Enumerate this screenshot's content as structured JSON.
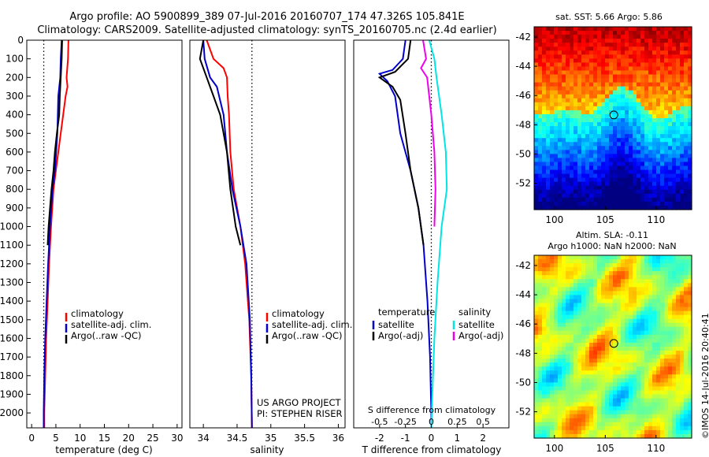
{
  "header": {
    "line1": "Argo profile: AO 5900899_389 07-Jul-2016 20160707_174 47.326S 105.841E",
    "line2": "Climatology: CARS2009. Satellite-adjusted climatology: synTS_20160705.nc (2.4d earlier)"
  },
  "colors": {
    "climatology": "#ff0000",
    "satellite": "#0000cc",
    "argo": "#000000",
    "sal_satellite": "#00e5e5",
    "sal_argo": "#ee00ee"
  },
  "footer": {
    "stamp": "©IMOS 14-Jul-2016 20:40:41"
  },
  "project": {
    "line1": "US ARGO PROJECT",
    "line2": "PI: STEPHEN RISER"
  },
  "chart_data": [
    {
      "type": "line",
      "id": "temperature",
      "xlabel": "temperature (deg C)",
      "ylabel": "",
      "xlim": [
        -1,
        31
      ],
      "ylim": [
        2080,
        0
      ],
      "xticks": [
        "0",
        "5",
        "10",
        "15",
        "20",
        "25",
        "30"
      ],
      "yticks": [
        "0",
        "100",
        "200",
        "300",
        "400",
        "500",
        "600",
        "700",
        "800",
        "900",
        "1000",
        "1100",
        "1200",
        "1300",
        "1400",
        "1500",
        "1600",
        "1700",
        "1800",
        "1900",
        "2000"
      ],
      "reference_line_x": 2.5,
      "legend": [
        "climatology",
        "satellite-adj. clim.",
        "Argo(..raw -QC)"
      ],
      "series": [
        {
          "name": "climatology",
          "color": "#ff0000",
          "points": [
            [
              7.6,
              0
            ],
            [
              7.5,
              100
            ],
            [
              7.2,
              200
            ],
            [
              7.4,
              250
            ],
            [
              7.0,
              300
            ],
            [
              6.0,
              500
            ],
            [
              5.0,
              700
            ],
            [
              4.5,
              800
            ],
            [
              4.0,
              1000
            ],
            [
              3.6,
              1200
            ],
            [
              3.3,
              1400
            ],
            [
              3.0,
              1600
            ],
            [
              2.8,
              1800
            ],
            [
              2.6,
              2000
            ],
            [
              2.6,
              2080
            ]
          ]
        },
        {
          "name": "satellite-adj. clim.",
          "color": "#0000cc",
          "points": [
            [
              6.2,
              0
            ],
            [
              6.0,
              100
            ],
            [
              5.9,
              200
            ],
            [
              5.5,
              300
            ],
            [
              5.3,
              500
            ],
            [
              4.8,
              700
            ],
            [
              4.3,
              800
            ],
            [
              3.8,
              1000
            ],
            [
              3.4,
              1200
            ],
            [
              3.1,
              1400
            ],
            [
              2.8,
              1600
            ],
            [
              2.6,
              1800
            ],
            [
              2.5,
              2000
            ],
            [
              2.5,
              2080
            ]
          ]
        },
        {
          "name": "Argo(..raw -QC)",
          "color": "#000000",
          "points": [
            [
              6.3,
              0
            ],
            [
              6.2,
              100
            ],
            [
              6.0,
              200
            ],
            [
              5.8,
              300
            ],
            [
              5.7,
              400
            ],
            [
              5.2,
              500
            ],
            [
              4.8,
              600
            ],
            [
              4.5,
              700
            ],
            [
              4.1,
              800
            ],
            [
              3.8,
              900
            ],
            [
              3.5,
              1000
            ],
            [
              3.3,
              1100
            ]
          ]
        }
      ]
    },
    {
      "type": "line",
      "id": "salinity",
      "xlabel": "salinity",
      "ylabel": "",
      "xlim": [
        33.8,
        36.1
      ],
      "ylim": [
        2080,
        0
      ],
      "xticks": [
        "34",
        "34.5",
        "35",
        "35.5",
        "36"
      ],
      "reference_line_x": 34.72,
      "legend": [
        "climatology",
        "satellite-adj. clim.",
        "Argo(..raw -QC)"
      ],
      "series": [
        {
          "name": "climatology",
          "color": "#ff0000",
          "points": [
            [
              34.05,
              0
            ],
            [
              34.15,
              100
            ],
            [
              34.3,
              150
            ],
            [
              34.35,
              200
            ],
            [
              34.36,
              300
            ],
            [
              34.38,
              400
            ],
            [
              34.4,
              600
            ],
            [
              34.45,
              800
            ],
            [
              34.55,
              1000
            ],
            [
              34.62,
              1200
            ],
            [
              34.68,
              1500
            ],
            [
              34.71,
              1800
            ],
            [
              34.72,
              2080
            ]
          ]
        },
        {
          "name": "satellite-adj. clim.",
          "color": "#0000cc",
          "points": [
            [
              34.0,
              0
            ],
            [
              34.02,
              100
            ],
            [
              34.1,
              200
            ],
            [
              34.2,
              250
            ],
            [
              34.3,
              400
            ],
            [
              34.35,
              600
            ],
            [
              34.43,
              800
            ],
            [
              34.55,
              1000
            ],
            [
              34.64,
              1200
            ],
            [
              34.69,
              1500
            ],
            [
              34.71,
              1800
            ],
            [
              34.72,
              2080
            ]
          ]
        },
        {
          "name": "Argo(..raw -QC)",
          "color": "#000000",
          "points": [
            [
              34.0,
              0
            ],
            [
              33.95,
              100
            ],
            [
              34.05,
              200
            ],
            [
              34.15,
              300
            ],
            [
              34.25,
              400
            ],
            [
              34.35,
              600
            ],
            [
              34.4,
              800
            ],
            [
              34.48,
              1000
            ],
            [
              34.55,
              1100
            ]
          ]
        }
      ]
    },
    {
      "type": "line",
      "id": "difference",
      "xlabel": "T difference from climatology",
      "top_label": "S difference from climatology",
      "xlim": [
        -3,
        3
      ],
      "ylim": [
        2080,
        0
      ],
      "xticks": [
        "-2",
        "-1",
        "0",
        "1",
        "2"
      ],
      "top_xticks": [
        "-0.5",
        "-0.25",
        "0",
        "0.25",
        "0.5"
      ],
      "reference_line_x": 0,
      "legend_groups": [
        {
          "title": "temperature",
          "items": [
            "satellite",
            "Argo(-adj)"
          ]
        },
        {
          "title": "salinity",
          "items": [
            "satellite",
            "Argo(-adj)"
          ]
        }
      ],
      "series": [
        {
          "name": "T satellite",
          "color": "#0000cc",
          "points": [
            [
              -1.0,
              0
            ],
            [
              -1.1,
              100
            ],
            [
              -1.5,
              160
            ],
            [
              -2.0,
              180
            ],
            [
              -1.7,
              220
            ],
            [
              -1.4,
              300
            ],
            [
              -1.2,
              500
            ],
            [
              -0.8,
              700
            ],
            [
              -0.5,
              900
            ],
            [
              -0.3,
              1100
            ],
            [
              -0.15,
              1400
            ],
            [
              -0.05,
              1700
            ],
            [
              0.0,
              2000
            ],
            [
              0.0,
              2080
            ]
          ]
        },
        {
          "name": "T Argo(-adj)",
          "color": "#000000",
          "points": [
            [
              -0.8,
              0
            ],
            [
              -0.9,
              100
            ],
            [
              -1.4,
              170
            ],
            [
              -2.0,
              200
            ],
            [
              -1.5,
              250
            ],
            [
              -1.2,
              320
            ],
            [
              -1.0,
              500
            ],
            [
              -0.8,
              700
            ],
            [
              -0.5,
              900
            ],
            [
              -0.3,
              1100
            ]
          ]
        },
        {
          "name": "S satellite",
          "color": "#00e5e5",
          "points": [
            [
              -0.02,
              0
            ],
            [
              0.03,
              100
            ],
            [
              0.05,
              200
            ],
            [
              0.1,
              400
            ],
            [
              0.14,
              600
            ],
            [
              0.15,
              800
            ],
            [
              0.1,
              1000
            ],
            [
              0.06,
              1300
            ],
            [
              0.03,
              1600
            ],
            [
              0.01,
              1900
            ],
            [
              0.0,
              2080
            ]
          ]
        },
        {
          "name": "S Argo(-adj)",
          "color": "#ee00ee",
          "points": [
            [
              -0.08,
              0
            ],
            [
              -0.05,
              100
            ],
            [
              -0.1,
              150
            ],
            [
              -0.04,
              200
            ],
            [
              0.0,
              400
            ],
            [
              0.03,
              600
            ],
            [
              0.04,
              800
            ],
            [
              0.03,
              1000
            ]
          ]
        }
      ]
    },
    {
      "type": "heatmap",
      "id": "sst",
      "title": "sat. SST: 5.66 Argo: 5.86",
      "xticks": [
        "100",
        "105",
        "110"
      ],
      "yticks": [
        "-42",
        "-44",
        "-46",
        "-48",
        "-50",
        "-52"
      ],
      "xlim": [
        98,
        113.5
      ],
      "ylim": [
        -53.8,
        -41.3
      ],
      "marker": [
        105.841,
        -47.326
      ]
    },
    {
      "type": "heatmap",
      "id": "sla",
      "title_line1": "Altim. SLA: -0.11",
      "title_line2": "Argo h1000: NaN h2000: NaN",
      "xticks": [
        "100",
        "105",
        "110"
      ],
      "yticks": [
        "-42",
        "-44",
        "-46",
        "-48",
        "-50",
        "-52"
      ],
      "xlim": [
        98,
        113.5
      ],
      "ylim": [
        -53.8,
        -41.3
      ],
      "marker": [
        105.841,
        -47.326
      ]
    }
  ]
}
